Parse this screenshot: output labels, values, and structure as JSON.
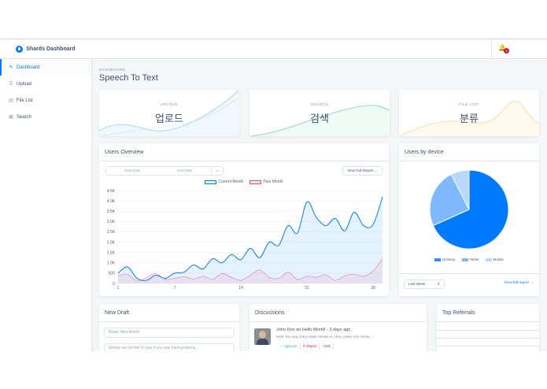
{
  "brand": {
    "name": "Shards Dashboard"
  },
  "sidebar": {
    "items": [
      {
        "label": "Dashboard",
        "icon": "pencil-icon"
      },
      {
        "label": "Upload",
        "icon": "list-icon"
      },
      {
        "label": "File List",
        "icon": "file-icon"
      },
      {
        "label": "Search",
        "icon": "table-icon"
      }
    ]
  },
  "topbar": {
    "notification_count": "2"
  },
  "page": {
    "subtitle": "DASHBOARD",
    "title": "Speech To Text"
  },
  "stats": [
    {
      "label": "UPLOAD",
      "value": "업로드",
      "color": "#007bff"
    },
    {
      "label": "SEARCH",
      "value": "검색",
      "color": "#17c671"
    },
    {
      "label": "FILE LIST",
      "value": "분류",
      "color": "#ffb400"
    }
  ],
  "users_overview": {
    "title": "Users Overview",
    "start_date_placeholder": "Start Date",
    "end_date_placeholder": "End Date",
    "view_full_report": "View Full Report →"
  },
  "users_by_device": {
    "title": "Users by device",
    "period": "Last Week",
    "view_full_report": "View full report →"
  },
  "new_draft": {
    "title": "New Draft",
    "title_placeholder": "Brave New World",
    "body_placeholder": "Words can be like X-rays if you use them properly..."
  },
  "discussions": {
    "title": "Discussions",
    "item": {
      "heading": "John Doe on Hello World! - 3 days ago",
      "text": "Well, the way they make shows is, they make one show ...",
      "approve": "✓ Approve",
      "reject": "✕ Reject",
      "edit": "⁝ Edit"
    }
  },
  "top_referrals": {
    "title": "Top Referrals"
  },
  "chart_data": [
    {
      "type": "area",
      "legend": [
        "Current Month",
        "Past Month"
      ],
      "x": [
        1,
        2,
        3,
        4,
        5,
        6,
        7,
        8,
        9,
        10,
        11,
        12,
        13,
        14,
        15,
        16,
        17,
        18,
        19,
        20,
        21,
        22,
        23,
        24,
        25,
        26,
        27,
        28,
        29
      ],
      "x_ticks": [
        "1",
        "7",
        "14",
        "21",
        "28"
      ],
      "y_ticks": [
        "0",
        "500",
        "1.0K",
        "1.5K",
        "2.0K",
        "2.5K",
        "3.0K",
        "3.5K",
        "4.0K",
        "4.5K"
      ],
      "ylim": [
        0,
        4500
      ],
      "series": [
        {
          "name": "Current Month",
          "color": "#007bff",
          "values": [
            500,
            800,
            250,
            150,
            400,
            250,
            500,
            550,
            900,
            700,
            1200,
            1000,
            1400,
            1150,
            1700,
            1250,
            2000,
            1850,
            2800,
            2450,
            3950,
            3200,
            2800,
            3150,
            2550,
            3450,
            2800,
            2850,
            4200
          ]
        },
        {
          "name": "Past Month",
          "color": "#ff4169",
          "values": [
            380,
            430,
            120,
            280,
            480,
            200,
            250,
            330,
            220,
            350,
            200,
            480,
            300,
            150,
            400,
            650,
            300,
            250,
            550,
            200,
            350,
            300,
            420,
            150,
            380,
            450,
            350,
            600,
            1200
          ]
        }
      ]
    },
    {
      "type": "pie",
      "categories": [
        "Desktop",
        "Tablet",
        "Mobile"
      ],
      "values": [
        68.3,
        24.2,
        7.5
      ],
      "colors": [
        "#007bff",
        "#7fb8ff",
        "#b9d7ff"
      ]
    }
  ]
}
